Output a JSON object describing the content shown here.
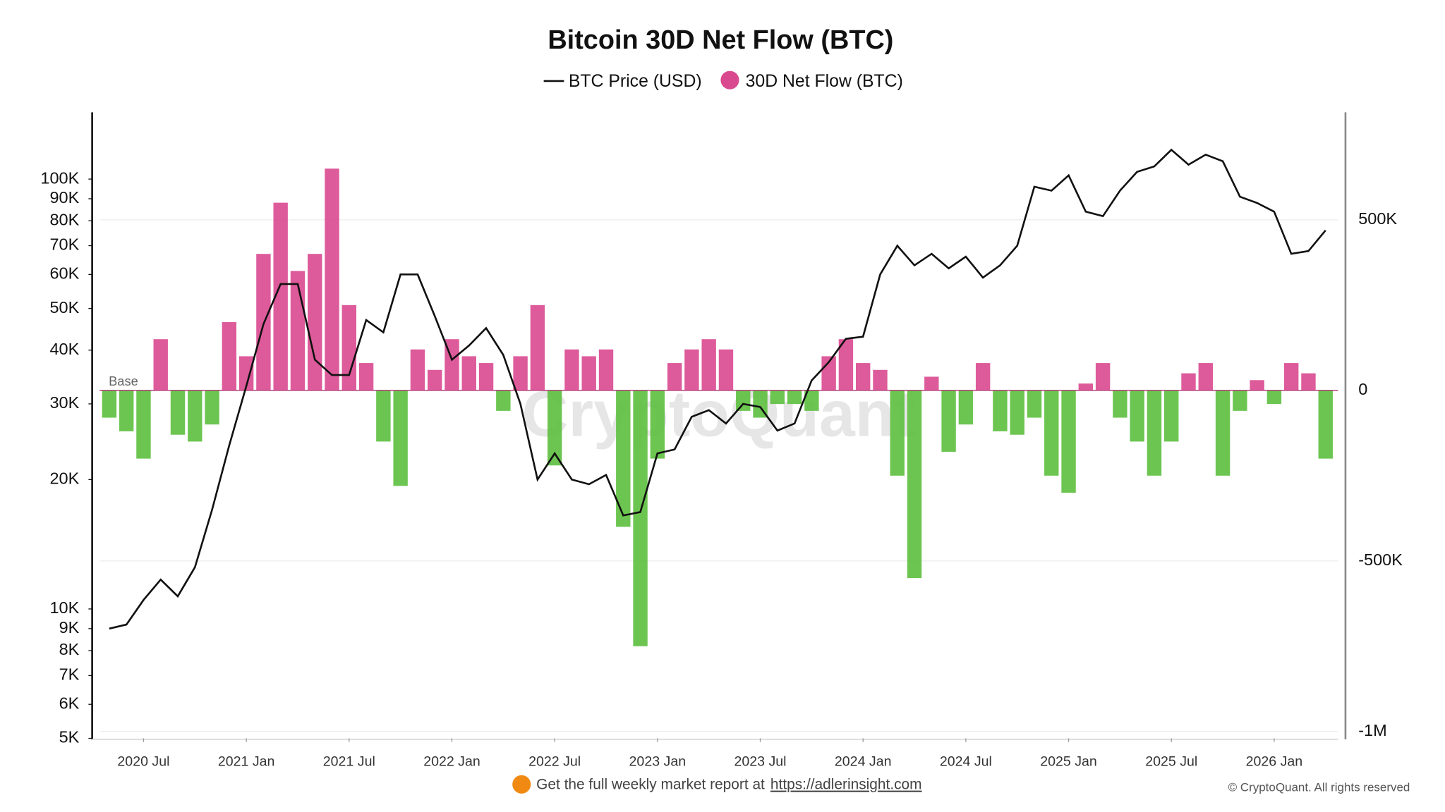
{
  "chart_data": {
    "type": "combo",
    "title": "Bitcoin 30D Net Flow (BTC)",
    "watermark": "CryptoQuant",
    "base_label": "Base",
    "footer": {
      "text": "Get the full weekly market report at",
      "link": "https://adlerinsight.com",
      "copyright": "© CryptoQuant. All rights reserved"
    },
    "x": [
      "2020-05",
      "2020-06",
      "2020-07",
      "2020-08",
      "2020-09",
      "2020-10",
      "2020-11",
      "2020-12",
      "2021-01",
      "2021-02",
      "2021-03",
      "2021-04",
      "2021-05",
      "2021-06",
      "2021-07",
      "2021-08",
      "2021-09",
      "2021-10",
      "2021-11",
      "2021-12",
      "2022-01",
      "2022-02",
      "2022-03",
      "2022-04",
      "2022-05",
      "2022-06",
      "2022-07",
      "2022-08",
      "2022-09",
      "2022-10",
      "2022-11",
      "2022-12",
      "2023-01",
      "2023-02",
      "2023-03",
      "2023-04",
      "2023-05",
      "2023-06",
      "2023-07",
      "2023-08",
      "2023-09",
      "2023-10",
      "2023-11",
      "2023-12",
      "2024-01",
      "2024-02",
      "2024-03",
      "2024-04",
      "2024-05",
      "2024-06",
      "2024-07",
      "2024-08",
      "2024-09",
      "2024-10",
      "2024-11",
      "2024-12",
      "2025-01",
      "2025-02",
      "2025-03",
      "2025-04",
      "2025-05",
      "2025-06",
      "2025-07",
      "2025-08",
      "2025-09",
      "2025-10",
      "2025-11",
      "2025-12",
      "2026-01",
      "2026-02",
      "2026-03",
      "2026-04"
    ],
    "series": [
      {
        "name": "BTC Price (USD)",
        "type": "line",
        "axis": "y",
        "color": "#111111",
        "values": [
          9000,
          9200,
          10500,
          11700,
          10700,
          12500,
          17000,
          24000,
          33000,
          46000,
          57000,
          57000,
          38000,
          35000,
          35000,
          47000,
          44000,
          60000,
          60000,
          48000,
          38000,
          41000,
          45000,
          39000,
          30000,
          20000,
          23000,
          20000,
          19500,
          20500,
          16500,
          16800,
          23000,
          23500,
          28000,
          29000,
          27000,
          30000,
          29500,
          26000,
          27000,
          34000,
          37500,
          42500,
          43000,
          60000,
          70000,
          63000,
          67000,
          62000,
          66000,
          59000,
          63000,
          70000,
          96000,
          94000,
          102000,
          84000,
          82000,
          94000,
          104000,
          107000,
          117000,
          108000,
          114000,
          110000,
          91000,
          88000,
          84000,
          67000,
          68000,
          76000
        ]
      },
      {
        "name": "30D Net Flow (BTC)",
        "type": "bar",
        "axis": "y2",
        "color": "#d9498f",
        "negative_color": "#5cbf3e",
        "values": [
          -80000,
          -120000,
          -200000,
          150000,
          -130000,
          -150000,
          -100000,
          200000,
          100000,
          400000,
          550000,
          350000,
          400000,
          650000,
          250000,
          80000,
          -150000,
          -280000,
          120000,
          60000,
          150000,
          100000,
          80000,
          -60000,
          100000,
          250000,
          -220000,
          120000,
          100000,
          120000,
          -400000,
          -750000,
          -200000,
          80000,
          120000,
          150000,
          120000,
          -60000,
          -80000,
          -40000,
          -40000,
          -60000,
          100000,
          150000,
          80000,
          60000,
          -250000,
          -550000,
          40000,
          -180000,
          -100000,
          80000,
          -120000,
          -130000,
          -80000,
          -250000,
          -300000,
          20000,
          80000,
          -80000,
          -150000,
          -250000,
          -150000,
          50000,
          80000,
          -250000,
          -60000,
          30000,
          -40000,
          80000,
          50000,
          -200000
        ]
      }
    ],
    "xlim": [
      "2020-04",
      "2026-05"
    ],
    "xticks": [
      {
        "value": "2020-07",
        "label": "2020 Jul"
      },
      {
        "value": "2021-01",
        "label": "2021 Jan"
      },
      {
        "value": "2021-07",
        "label": "2021 Jul"
      },
      {
        "value": "2022-01",
        "label": "2022 Jan"
      },
      {
        "value": "2022-07",
        "label": "2022 Jul"
      },
      {
        "value": "2023-01",
        "label": "2023 Jan"
      },
      {
        "value": "2023-07",
        "label": "2023 Jul"
      },
      {
        "value": "2024-01",
        "label": "2024 Jan"
      },
      {
        "value": "2024-07",
        "label": "2024 Jul"
      },
      {
        "value": "2025-01",
        "label": "2025 Jan"
      },
      {
        "value": "2025-07",
        "label": "2025 Jul"
      },
      {
        "value": "2026-01",
        "label": "2026 Jan"
      }
    ],
    "ylim": [
      5000,
      143000
    ],
    "log_y": true,
    "yticks": [
      {
        "value": 5000,
        "label": "5K"
      },
      {
        "value": 6000,
        "label": "6K"
      },
      {
        "value": 7000,
        "label": "7K"
      },
      {
        "value": 8000,
        "label": "8K"
      },
      {
        "value": 9000,
        "label": "9K"
      },
      {
        "value": 10000,
        "label": "10K"
      },
      {
        "value": 20000,
        "label": "20K"
      },
      {
        "value": 30000,
        "label": "30K"
      },
      {
        "value": 40000,
        "label": "40K"
      },
      {
        "value": 50000,
        "label": "50K"
      },
      {
        "value": 60000,
        "label": "60K"
      },
      {
        "value": 70000,
        "label": "70K"
      },
      {
        "value": 80000,
        "label": "80K"
      },
      {
        "value": 90000,
        "label": "90K"
      },
      {
        "value": 100000,
        "label": "100K"
      }
    ],
    "y2lim": [
      -1020000,
      815000
    ],
    "y2ticks": [
      {
        "value": 500000,
        "label": "500K"
      },
      0,
      {
        "value": -500000,
        "label": "-500K"
      },
      {
        "value": -1000000,
        "label": "-1M"
      }
    ],
    "grid": true,
    "legend": "top"
  }
}
